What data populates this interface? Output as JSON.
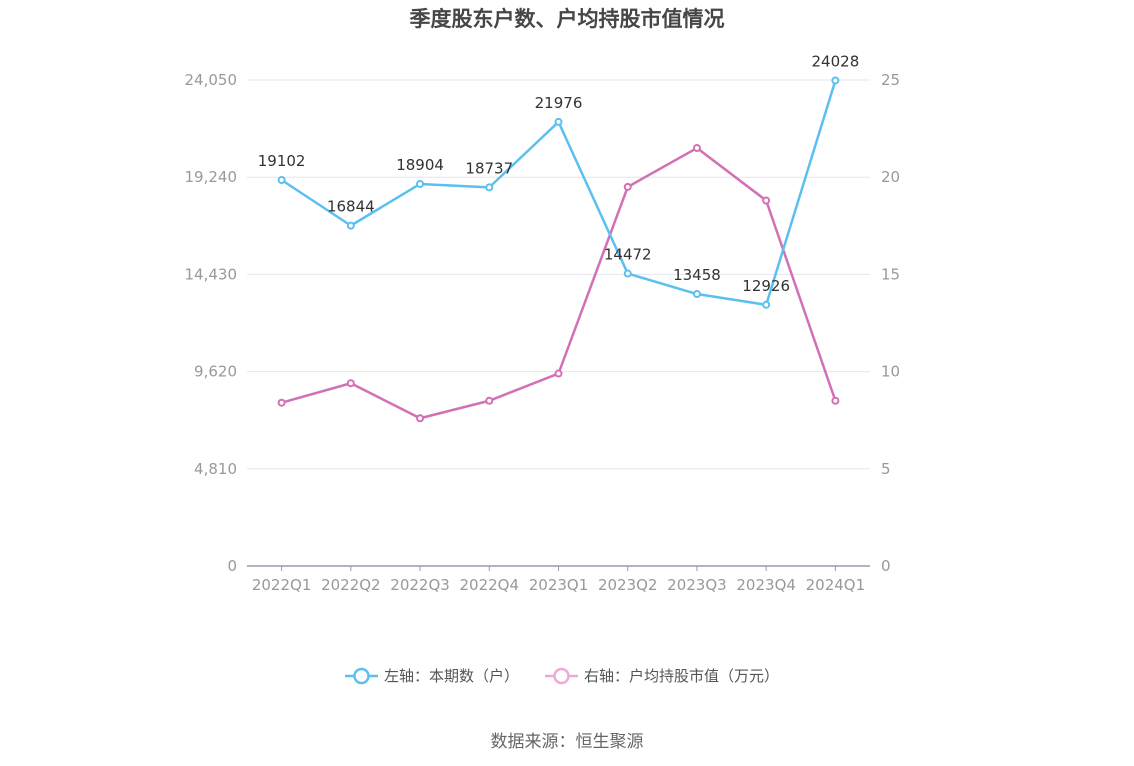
{
  "chart_data": {
    "type": "line",
    "title": "季度股东户数、户均持股市值情况",
    "categories": [
      "2022Q1",
      "2022Q2",
      "2022Q3",
      "2022Q4",
      "2023Q1",
      "2023Q2",
      "2023Q3",
      "2023Q4",
      "2024Q1"
    ],
    "y_left": {
      "ticks": [
        "0",
        "4,810",
        "9,620",
        "14,430",
        "19,240",
        "24,050"
      ],
      "ylim": [
        0,
        24050
      ]
    },
    "y_right": {
      "ticks": [
        "0",
        "5",
        "10",
        "15",
        "20",
        "25"
      ],
      "ylim": [
        0,
        25
      ]
    },
    "series": [
      {
        "name": "左轴：本期数（户）",
        "axis": "left",
        "color": "#5bc0f0",
        "values": [
          19102,
          16844,
          18904,
          18737,
          21976,
          14472,
          13458,
          12926,
          24028
        ],
        "labels": [
          "19102",
          "16844",
          "18904",
          "18737",
          "21976",
          "14472",
          "13458",
          "12926",
          "24028"
        ]
      },
      {
        "name": "右轴：户均持股市值（万元）",
        "axis": "right",
        "color": "#d36fb4",
        "legend_color": "#eeaad6",
        "values": [
          8.4,
          9.4,
          7.6,
          8.5,
          9.9,
          19.5,
          21.5,
          18.8,
          8.5
        ]
      }
    ],
    "grid": true,
    "legend_position": "bottom-center"
  },
  "source": "数据来源：恒生聚源"
}
